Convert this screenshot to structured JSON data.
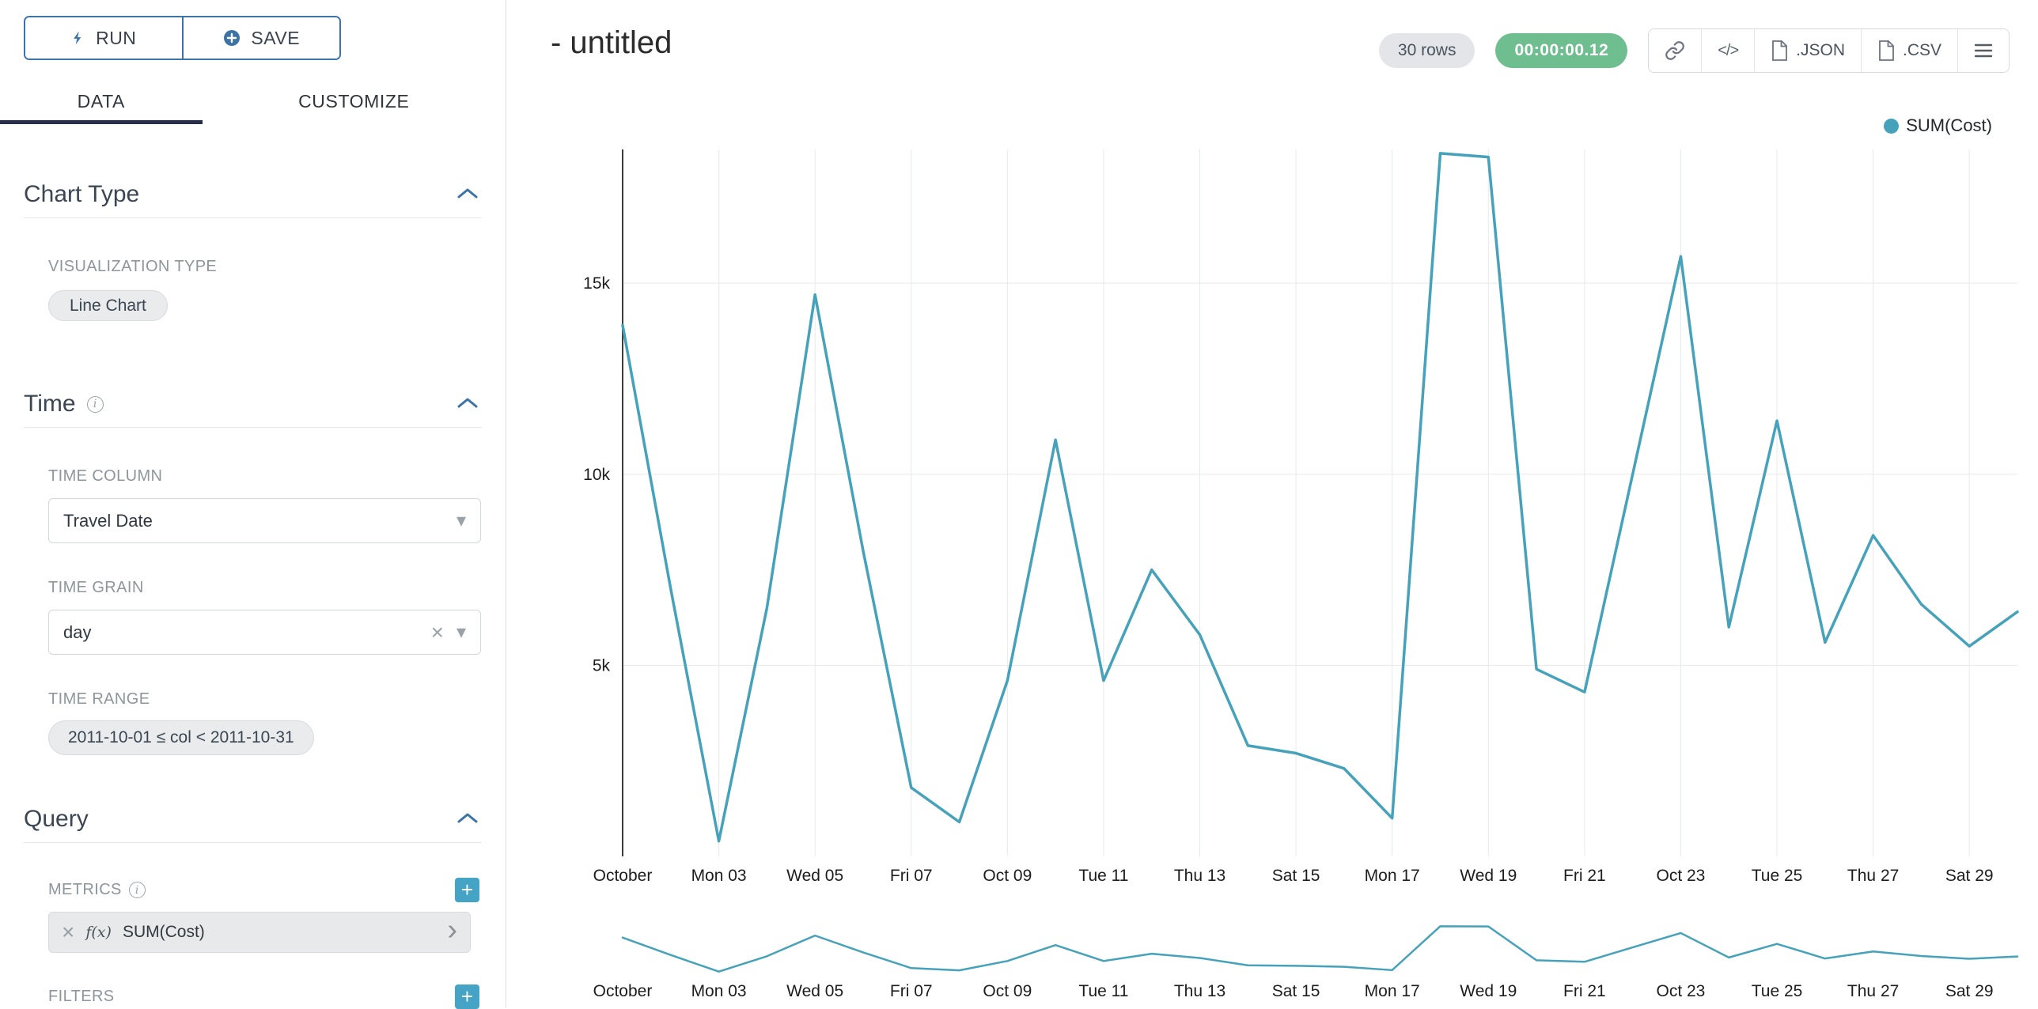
{
  "colors": {
    "accent": "#3D74A8",
    "plus_button": "#45A3C6",
    "line": "#46A2BA",
    "green_badge": "#6FBE8F",
    "tab_underline": "#262E49"
  },
  "toolbar": {
    "run": "RUN",
    "save": "SAVE"
  },
  "tabs": {
    "data": "DATA",
    "customize": "CUSTOMIZE"
  },
  "sections": {
    "chart_type": {
      "title": "Chart Type",
      "viz_type_label": "VISUALIZATION TYPE",
      "viz_type_value": "Line Chart"
    },
    "time": {
      "title": "Time",
      "column_label": "TIME COLUMN",
      "column_value": "Travel Date",
      "grain_label": "TIME GRAIN",
      "grain_value": "day",
      "range_label": "TIME RANGE",
      "range_value": "2011-10-01 ≤ col < 2011-10-31"
    },
    "query": {
      "title": "Query",
      "metrics_label": "METRICS",
      "metric_fx": "f(x)",
      "metric_name": "SUM(Cost)",
      "filters_label": "FILTERS"
    }
  },
  "header": {
    "title": "- untitled",
    "rows_badge": "30 rows",
    "timer_badge": "00:00:00.12",
    "code_button": "</>",
    "json_button": ".JSON",
    "csv_button": ".CSV"
  },
  "legend": {
    "label": "SUM(Cost)"
  },
  "chart_data": {
    "type": "line",
    "title": "",
    "xlabel": "",
    "ylabel": "",
    "x_days": [
      1,
      2,
      3,
      4,
      5,
      6,
      7,
      8,
      9,
      10,
      11,
      12,
      13,
      14,
      15,
      16,
      17,
      18,
      19,
      20,
      21,
      22,
      23,
      24,
      25,
      26,
      27,
      28,
      29,
      30
    ],
    "x_label_days": [
      1,
      3,
      5,
      7,
      9,
      11,
      13,
      15,
      17,
      19,
      21,
      23,
      25,
      27,
      29
    ],
    "x_tick_labels": [
      "October",
      "Mon 03",
      "Wed 05",
      "Fri 07",
      "Oct 09",
      "Tue 11",
      "Thu 13",
      "Sat 15",
      "Mon 17",
      "Wed 19",
      "Fri 21",
      "Oct 23",
      "Tue 25",
      "Thu 27",
      "Sat 29"
    ],
    "y_ticks": [
      {
        "v": 5000,
        "label": "5k"
      },
      {
        "v": 10000,
        "label": "10k"
      },
      {
        "v": 15000,
        "label": "15k"
      }
    ],
    "ylim": [
      0,
      18500
    ],
    "grid": true,
    "legend_position": "top-right",
    "series": [
      {
        "name": "SUM(Cost)",
        "color": "#46A2BA",
        "values": [
          13900,
          7000,
          400,
          6500,
          14700,
          8000,
          1800,
          900,
          4600,
          10900,
          4600,
          7500,
          5800,
          2900,
          2700,
          2300,
          1000,
          18400,
          18300,
          4900,
          4300,
          10000,
          15700,
          6000,
          11400,
          5600,
          8400,
          6600,
          5500,
          6400
        ]
      }
    ]
  }
}
